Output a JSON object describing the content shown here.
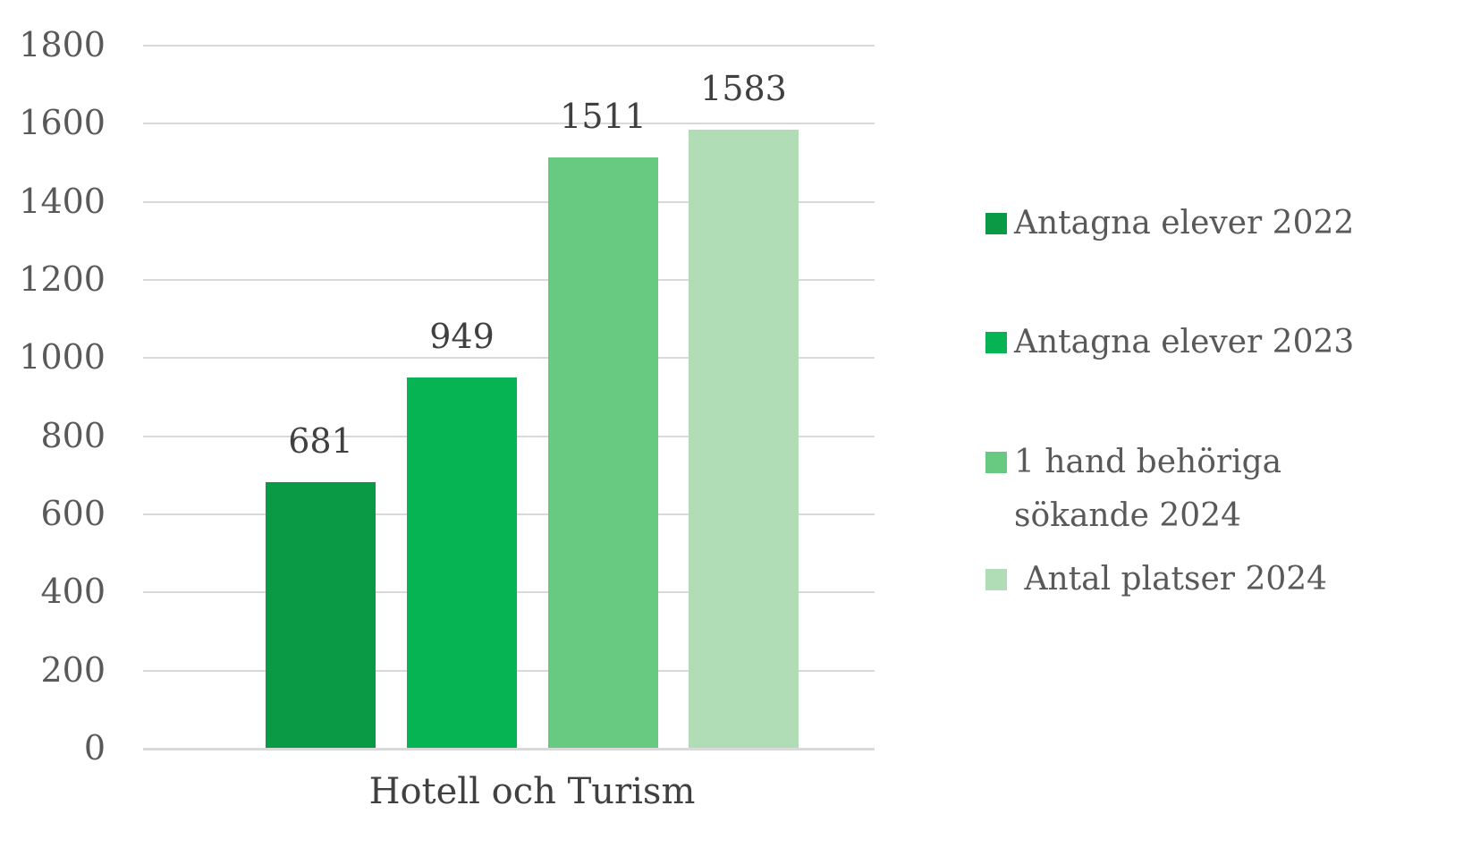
{
  "chart_data": {
    "type": "bar",
    "title": "",
    "xlabel": "",
    "ylabel": "",
    "categories": [
      "Hotell och Turism"
    ],
    "series": [
      {
        "name": "Antagna elever 2022",
        "values": [
          681
        ],
        "color": "#0a9a45"
      },
      {
        "name": "Antagna elever 2023",
        "values": [
          949
        ],
        "color": "#06b453"
      },
      {
        "name": "1 hand behöriga sökande 2024",
        "values": [
          1511
        ],
        "color": "#68ca81"
      },
      {
        "name": " Antal platser 2024",
        "values": [
          1583
        ],
        "color": "#b0dcb6"
      }
    ],
    "ylim": [
      0,
      1800
    ],
    "yticks": [
      0,
      200,
      400,
      600,
      800,
      1000,
      1200,
      1400,
      1600,
      1800
    ],
    "grid": true,
    "legend_position": "right",
    "data_labels_shown": true
  },
  "colors": {
    "background": "#ffffff",
    "gridline": "#d9d9d9",
    "axis_line": "#d9d9d9",
    "tick_text": "#595959",
    "data_label_text": "#404040",
    "category_label_text": "#404040",
    "legend_text": "#595959"
  }
}
